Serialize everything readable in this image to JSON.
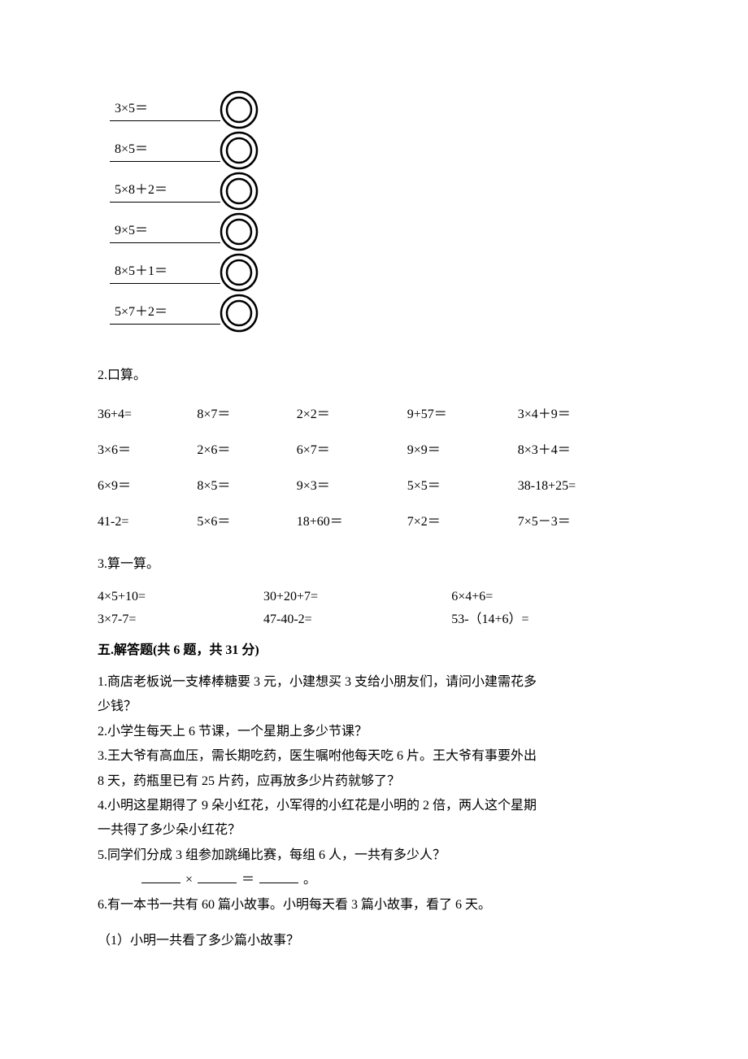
{
  "equations_stack": {
    "items": [
      {
        "label": "3×5＝"
      },
      {
        "label": "8×5＝"
      },
      {
        "label": "5×8＋2＝"
      },
      {
        "label": "9×5＝"
      },
      {
        "label": "8×5＋1＝"
      },
      {
        "label": "5×7＋2＝"
      }
    ],
    "circle": {
      "outer_r": 22,
      "inner_r": 15,
      "stroke": "#000000",
      "stroke_w": 2.5,
      "size": 50
    }
  },
  "section2": {
    "heading": "2.口算。",
    "rows": [
      [
        "36+4=",
        "8×7＝",
        "2×2＝",
        "9+57＝",
        "3×4＋9＝"
      ],
      [
        "3×6＝",
        "2×6＝",
        "6×7＝",
        "9×9＝",
        "8×3＋4＝"
      ],
      [
        "6×9＝",
        "8×5＝",
        "9×3＝",
        "5×5＝",
        "38-18+25="
      ],
      [
        "41-2=",
        "5×6＝",
        "18+60＝",
        "7×2＝",
        "7×5－3＝"
      ]
    ],
    "col_widths": [
      "18%",
      "18%",
      "20%",
      "20%",
      "24%"
    ]
  },
  "section3": {
    "heading": "3.算一算。",
    "rows": [
      [
        "4×5+10=",
        "30+20+7=",
        "6×4+6="
      ],
      [
        "3×7-7=",
        "47-40-2=",
        "53-（14+6）="
      ]
    ],
    "col_widths": [
      "30%",
      "34%",
      "36%"
    ]
  },
  "section5": {
    "title": "五.解答题(共 6 题，共 31 分)",
    "q1a": "1.商店老板说一支棒棒糖要 3 元，小建想买 3 支给小朋友们，请问小建需花多",
    "q1b": "少钱？",
    "q2": "2.小学生每天上 6 节课，一个星期上多少节课？",
    "q3a": "3.王大爷有高血压，需长期吃药，医生嘱咐他每天吃 6 片。王大爷有事要外出",
    "q3b": "8 天，药瓶里已有 25 片药，应再放多少片药就够了？",
    "q4a": "4.小明这星期得了 9 朵小红花，小军得的小红花是小明的 2 倍，两人这个星期",
    "q4b": "一共得了多少朵小红花？",
    "q5": "5.同学们分成 3 组参加跳绳比赛，每组 6 人，一共有多少人？",
    "q5_fill": {
      "times": "×",
      "equals": "＝",
      "period": "。"
    },
    "q6": "6.有一本书一共有 60 篇小故事。小明每天看 3 篇小故事，看了 6 天。",
    "q6_1": "（1）小明一共看了多少篇小故事？"
  }
}
